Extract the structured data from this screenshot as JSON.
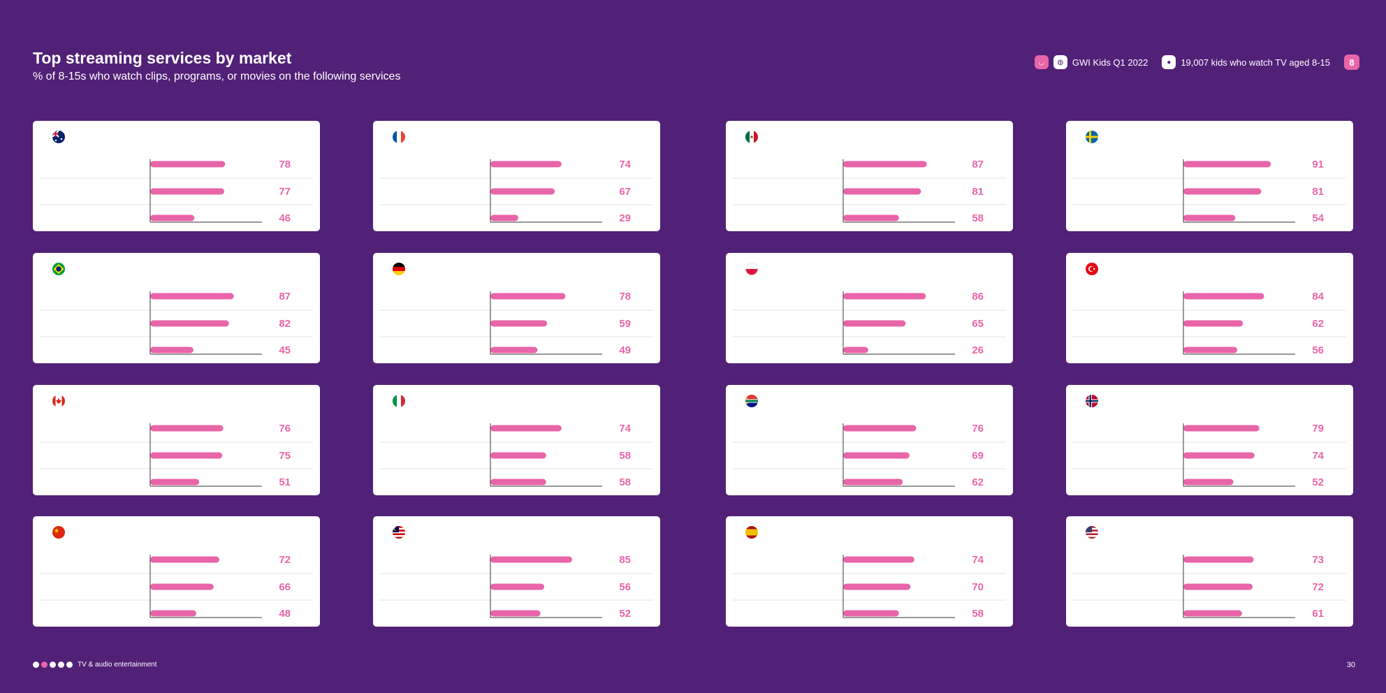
{
  "header": {
    "title": "Top streaming services by market",
    "subtitle": "% of 8-15s who watch clips, programs, or movies on the following services"
  },
  "meta": {
    "source": "GWI Kids Q1 2022",
    "base": "19,007 kids who watch TV aged 8-15",
    "badge": "8"
  },
  "footer": {
    "section": "TV & audio entertainment",
    "page": "30"
  },
  "colors": {
    "bar": "#e965a9",
    "value": "#e965a9",
    "background": "#512077"
  },
  "chart_data": [
    {
      "type": "bar",
      "flag": "australia",
      "values": [
        78,
        77,
        46
      ]
    },
    {
      "type": "bar",
      "flag": "france",
      "values": [
        74,
        67,
        29
      ]
    },
    {
      "type": "bar",
      "flag": "mexico",
      "values": [
        87,
        81,
        58
      ]
    },
    {
      "type": "bar",
      "flag": "sweden",
      "values": [
        91,
        81,
        54
      ]
    },
    {
      "type": "bar",
      "flag": "brazil",
      "values": [
        87,
        82,
        45
      ]
    },
    {
      "type": "bar",
      "flag": "germany",
      "values": [
        78,
        59,
        49
      ]
    },
    {
      "type": "bar",
      "flag": "poland",
      "values": [
        86,
        65,
        26
      ]
    },
    {
      "type": "bar",
      "flag": "turkey",
      "values": [
        84,
        62,
        56
      ]
    },
    {
      "type": "bar",
      "flag": "canada",
      "values": [
        76,
        75,
        51
      ]
    },
    {
      "type": "bar",
      "flag": "italy",
      "values": [
        74,
        58,
        58
      ]
    },
    {
      "type": "bar",
      "flag": "south-africa",
      "values": [
        76,
        69,
        62
      ]
    },
    {
      "type": "bar",
      "flag": "norway",
      "values": [
        79,
        74,
        52
      ]
    },
    {
      "type": "bar",
      "flag": "china",
      "values": [
        72,
        66,
        48
      ]
    },
    {
      "type": "bar",
      "flag": "malaysia",
      "values": [
        85,
        56,
        52
      ]
    },
    {
      "type": "bar",
      "flag": "spain",
      "values": [
        74,
        70,
        58
      ]
    },
    {
      "type": "bar",
      "flag": "usa",
      "values": [
        73,
        72,
        61
      ]
    }
  ]
}
